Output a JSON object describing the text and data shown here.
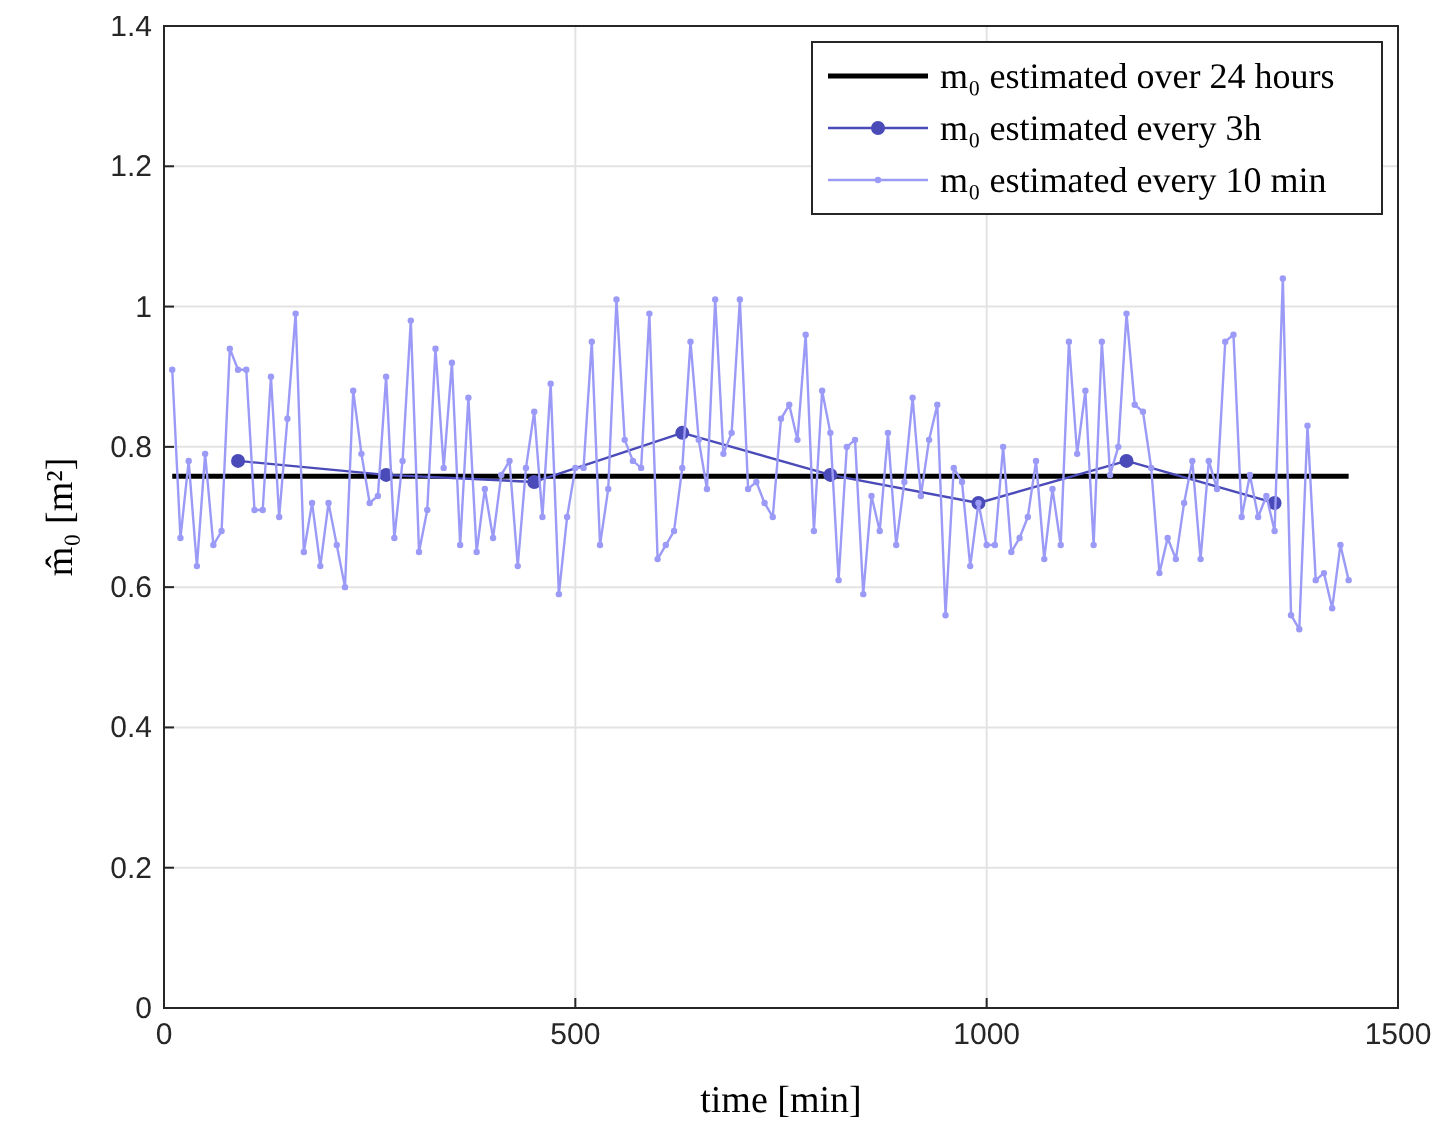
{
  "chart_data": {
    "type": "line",
    "xlabel": "time [min]",
    "ylabel": "m̂₀ [m²]",
    "xlim": [
      0,
      1500
    ],
    "xticks": [
      0,
      500,
      1000,
      1500
    ],
    "ylim": [
      0,
      1.4
    ],
    "yticks": [
      0,
      0.2,
      0.4,
      0.6,
      0.8,
      1,
      1.2,
      1.4
    ],
    "grid": true,
    "legend": "top right",
    "line_style": "solid",
    "series": [
      {
        "name": "m₀ estimated over 24 hours",
        "color": "#000000",
        "marker": "none",
        "x": [
          10,
          1440
        ],
        "values": [
          0.758,
          0.758
        ]
      },
      {
        "name": "m₀ estimated every 3h",
        "color": "#4a4ab8",
        "marker": "circle",
        "x": [
          90,
          270,
          450,
          630,
          810,
          990,
          1170,
          1350
        ],
        "values": [
          0.78,
          0.76,
          0.75,
          0.82,
          0.76,
          0.72,
          0.78,
          0.72
        ]
      },
      {
        "name": "m₀ estimated every 10 min",
        "color": "#9b9bf7",
        "marker": "circle",
        "x": [
          10,
          20,
          30,
          40,
          50,
          60,
          70,
          80,
          90,
          100,
          110,
          120,
          130,
          140,
          150,
          160,
          170,
          180,
          190,
          200,
          210,
          220,
          230,
          240,
          250,
          260,
          270,
          280,
          290,
          300,
          310,
          320,
          330,
          340,
          350,
          360,
          370,
          380,
          390,
          400,
          410,
          420,
          430,
          440,
          450,
          460,
          470,
          480,
          490,
          500,
          510,
          520,
          530,
          540,
          550,
          560,
          570,
          580,
          590,
          600,
          610,
          620,
          630,
          640,
          650,
          660,
          670,
          680,
          690,
          700,
          710,
          720,
          730,
          740,
          750,
          760,
          770,
          780,
          790,
          800,
          810,
          820,
          830,
          840,
          850,
          860,
          870,
          880,
          890,
          900,
          910,
          920,
          930,
          940,
          950,
          960,
          970,
          980,
          990,
          1000,
          1010,
          1020,
          1030,
          1040,
          1050,
          1060,
          1070,
          1080,
          1090,
          1100,
          1110,
          1120,
          1130,
          1140,
          1150,
          1160,
          1170,
          1180,
          1190,
          1200,
          1210,
          1220,
          1230,
          1240,
          1250,
          1260,
          1270,
          1280,
          1290,
          1300,
          1310,
          1320,
          1330,
          1340,
          1350,
          1360,
          1370,
          1380,
          1390,
          1400,
          1410,
          1420,
          1430,
          1440
        ],
        "values": [
          0.91,
          0.67,
          0.78,
          0.63,
          0.79,
          0.66,
          0.68,
          0.94,
          0.91,
          0.91,
          0.71,
          0.71,
          0.9,
          0.7,
          0.84,
          0.99,
          0.65,
          0.72,
          0.63,
          0.72,
          0.66,
          0.6,
          0.88,
          0.79,
          0.72,
          0.73,
          0.9,
          0.67,
          0.78,
          0.98,
          0.65,
          0.71,
          0.94,
          0.77,
          0.92,
          0.66,
          0.87,
          0.65,
          0.74,
          0.67,
          0.76,
          0.78,
          0.63,
          0.77,
          0.85,
          0.7,
          0.89,
          0.59,
          0.7,
          0.77,
          0.77,
          0.95,
          0.66,
          0.74,
          1.01,
          0.81,
          0.78,
          0.77,
          0.99,
          0.64,
          0.66,
          0.68,
          0.77,
          0.95,
          0.81,
          0.74,
          1.01,
          0.79,
          0.82,
          1.01,
          0.74,
          0.75,
          0.72,
          0.7,
          0.84,
          0.86,
          0.81,
          0.96,
          0.68,
          0.88,
          0.82,
          0.61,
          0.8,
          0.81,
          0.59,
          0.73,
          0.68,
          0.82,
          0.66,
          0.75,
          0.87,
          0.73,
          0.81,
          0.86,
          0.56,
          0.77,
          0.75,
          0.63,
          0.72,
          0.66,
          0.66,
          0.8,
          0.65,
          0.67,
          0.7,
          0.78,
          0.64,
          0.74,
          0.66,
          0.95,
          0.79,
          0.88,
          0.66,
          0.95,
          0.76,
          0.8,
          0.99,
          0.86,
          0.85,
          0.77,
          0.62,
          0.67,
          0.64,
          0.72,
          0.78,
          0.64,
          0.78,
          0.74,
          0.95,
          0.96,
          0.7,
          0.76,
          0.7,
          0.73,
          0.68,
          1.04,
          0.56,
          0.54,
          0.83,
          0.61,
          0.62,
          0.57,
          0.66,
          0.61
        ]
      }
    ]
  }
}
